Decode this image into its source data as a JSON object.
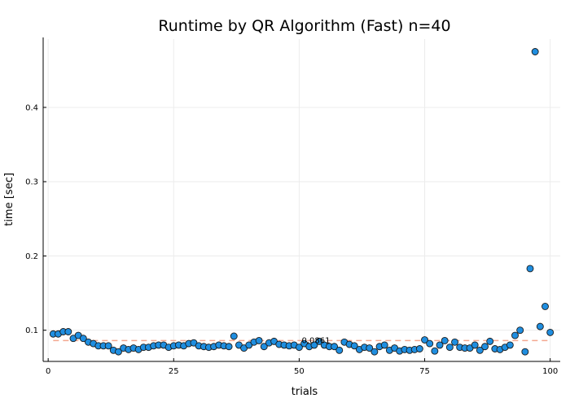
{
  "chart_data": {
    "type": "scatter",
    "title": "Runtime by QR Algorithm (Fast)  n=40",
    "xlabel": "trials",
    "ylabel": "time [sec]",
    "xlim": [
      -1,
      102
    ],
    "ylim": [
      0.058,
      0.492
    ],
    "xticks": [
      0,
      25,
      50,
      75,
      100
    ],
    "xtick_labels": [
      "0",
      "25",
      "50",
      "75",
      "100"
    ],
    "yticks": [
      0.1,
      0.2,
      0.3,
      0.4
    ],
    "ytick_labels": [
      "0.1",
      "0.2",
      "0.3",
      "0.4"
    ],
    "grid": true,
    "legend": "none",
    "marker_color": "#1f8ee0",
    "marker_edge": "#1b1b1b",
    "mean_line_color": "#f4a890",
    "mean": {
      "value": 0.0861,
      "label": "0.0861",
      "label_x": 50.5
    },
    "x": [
      1,
      2,
      3,
      4,
      5,
      6,
      7,
      8,
      9,
      10,
      11,
      12,
      13,
      14,
      15,
      16,
      17,
      18,
      19,
      20,
      21,
      22,
      23,
      24,
      25,
      26,
      27,
      28,
      29,
      30,
      31,
      32,
      33,
      34,
      35,
      36,
      37,
      38,
      39,
      40,
      41,
      42,
      43,
      44,
      45,
      46,
      47,
      48,
      49,
      50,
      51,
      52,
      53,
      54,
      55,
      56,
      57,
      58,
      59,
      60,
      61,
      62,
      63,
      64,
      65,
      66,
      67,
      68,
      69,
      70,
      71,
      72,
      73,
      74,
      75,
      76,
      77,
      78,
      79,
      80,
      81,
      82,
      83,
      84,
      85,
      86,
      87,
      88,
      89,
      90,
      91,
      92,
      93,
      94,
      95,
      96,
      97,
      98,
      99,
      100
    ],
    "y": [
      0.095,
      0.095,
      0.098,
      0.098,
      0.089,
      0.093,
      0.089,
      0.084,
      0.082,
      0.079,
      0.079,
      0.079,
      0.073,
      0.071,
      0.076,
      0.074,
      0.076,
      0.074,
      0.077,
      0.077,
      0.079,
      0.08,
      0.08,
      0.077,
      0.079,
      0.08,
      0.079,
      0.082,
      0.083,
      0.079,
      0.078,
      0.077,
      0.078,
      0.08,
      0.079,
      0.078,
      0.092,
      0.08,
      0.076,
      0.08,
      0.084,
      0.086,
      0.078,
      0.083,
      0.085,
      0.081,
      0.08,
      0.079,
      0.08,
      0.077,
      0.082,
      0.078,
      0.08,
      0.085,
      0.08,
      0.078,
      0.078,
      0.073,
      0.084,
      0.081,
      0.079,
      0.074,
      0.077,
      0.076,
      0.071,
      0.078,
      0.08,
      0.073,
      0.076,
      0.072,
      0.074,
      0.073,
      0.074,
      0.075,
      0.087,
      0.082,
      0.072,
      0.08,
      0.086,
      0.077,
      0.084,
      0.077,
      0.076,
      0.076,
      0.08,
      0.073,
      0.078,
      0.085,
      0.075,
      0.074,
      0.077,
      0.08,
      0.093,
      0.1,
      0.071,
      0.183,
      0.475,
      0.105,
      0.132,
      0.097
    ]
  }
}
